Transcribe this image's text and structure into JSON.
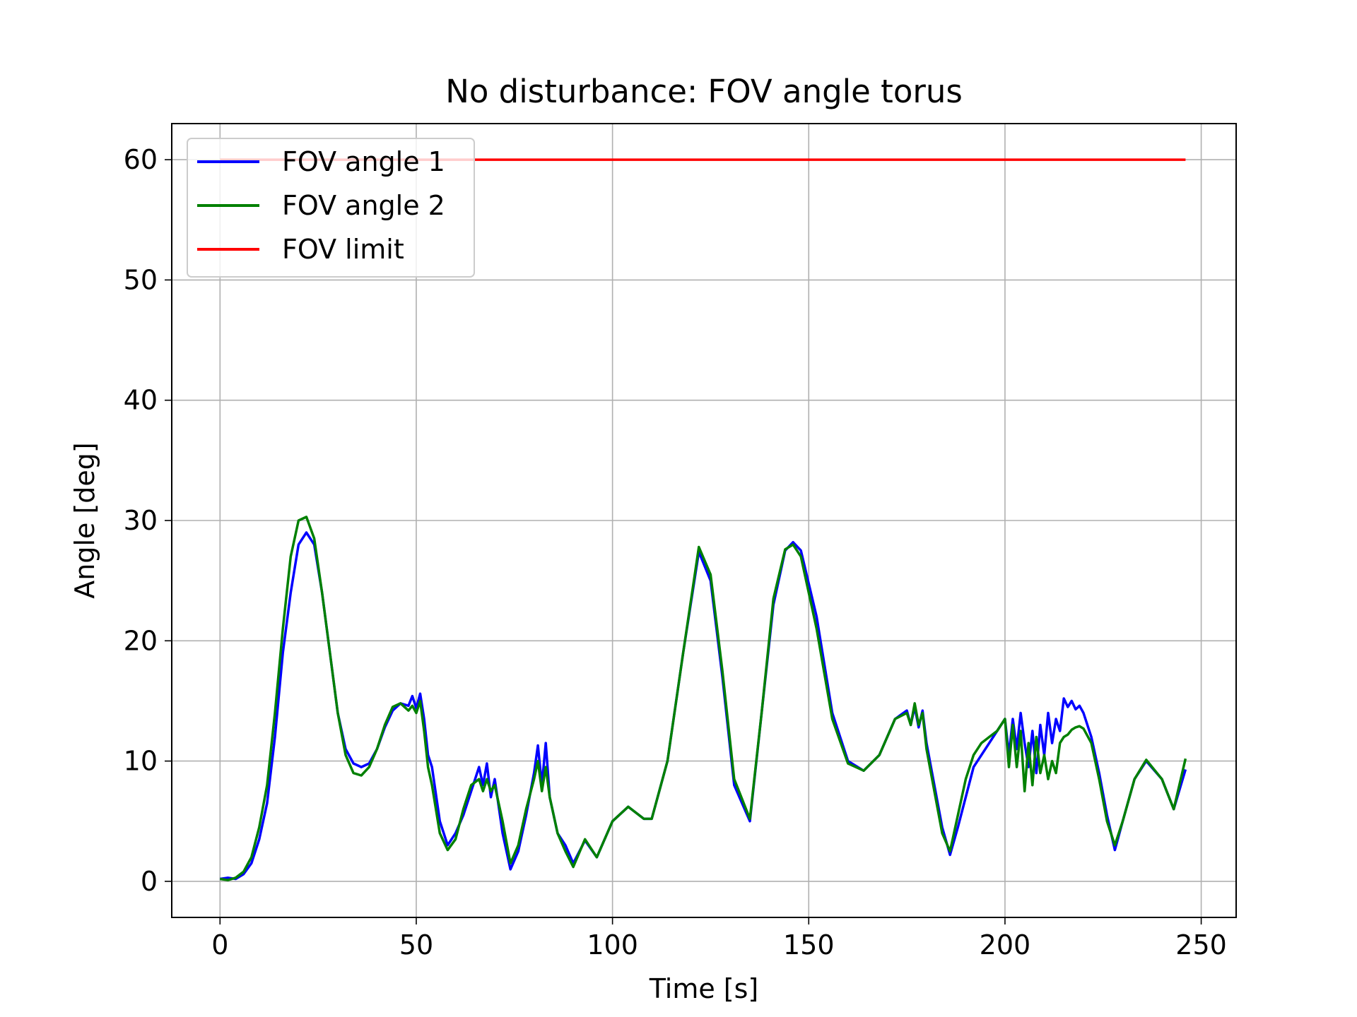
{
  "chart_data": {
    "type": "line",
    "title": "No disturbance: FOV angle torus",
    "xlabel": "Time [s]",
    "ylabel": "Angle [deg]",
    "xlim": [
      -12.3,
      258.9
    ],
    "ylim": [
      -3,
      63
    ],
    "xticks": [
      0,
      50,
      100,
      150,
      200,
      250
    ],
    "yticks": [
      0,
      10,
      20,
      30,
      40,
      50,
      60
    ],
    "xtick_labels": [
      "0",
      "50",
      "100",
      "150",
      "200",
      "250"
    ],
    "ytick_labels": [
      "0",
      "10",
      "20",
      "30",
      "40",
      "50",
      "60"
    ],
    "grid": true,
    "legend_position": "upper-left",
    "series": [
      {
        "name": "FOV angle 1",
        "color": "#0000ff",
        "x": [
          0,
          2,
          4,
          6,
          8,
          10,
          12,
          14,
          16,
          18,
          20,
          22,
          24,
          26,
          28,
          30,
          32,
          34,
          36,
          38,
          40,
          42,
          44,
          46,
          48,
          49,
          50,
          51,
          52,
          53,
          54,
          56,
          58,
          60,
          62,
          64,
          66,
          67,
          68,
          69,
          70,
          72,
          74,
          76,
          78,
          80,
          81,
          82,
          83,
          84,
          86,
          88,
          90,
          93,
          96,
          100,
          104,
          108,
          110,
          114,
          118,
          122,
          125,
          128,
          131,
          135,
          138,
          141,
          144,
          146,
          148,
          152,
          156,
          160,
          164,
          168,
          172,
          175,
          176,
          177,
          178,
          179,
          180,
          182,
          184,
          186,
          188,
          190,
          192,
          194,
          196,
          198,
          200,
          201,
          202,
          203,
          204,
          205,
          206,
          207,
          208,
          209,
          210,
          211,
          212,
          213,
          214,
          215,
          216,
          217,
          218,
          219,
          220,
          222,
          224,
          226,
          228,
          230,
          233,
          236,
          240,
          243,
          246
        ],
        "y": [
          0.2,
          0.3,
          0.2,
          0.6,
          1.5,
          3.5,
          6.5,
          12,
          19,
          24,
          28,
          29,
          28,
          24,
          19,
          14,
          11,
          9.8,
          9.5,
          9.8,
          11,
          12.8,
          14.2,
          14.8,
          14.6,
          15.4,
          14.4,
          15.6,
          13.5,
          10.5,
          9.5,
          5,
          3,
          4,
          5.5,
          7.5,
          9.5,
          8,
          9.8,
          7,
          8.5,
          4,
          1,
          2.5,
          5.5,
          9,
          11.3,
          8,
          11.5,
          7,
          4,
          3,
          1.5,
          3.4,
          2,
          5,
          6.2,
          5.2,
          5.2,
          10,
          19,
          27.4,
          25,
          17,
          8,
          5,
          14,
          23,
          27.5,
          28.2,
          27.5,
          22,
          14,
          10,
          9.2,
          10.5,
          13.5,
          14.2,
          13,
          14.5,
          12.8,
          14.2,
          11.5,
          8,
          4.5,
          2.2,
          4.5,
          7,
          9.5,
          10.5,
          11.5,
          12.5,
          13.5,
          10.5,
          13.5,
          11,
          14,
          11.5,
          9.5,
          12.5,
          9,
          13,
          10.5,
          14,
          11.5,
          13.5,
          12.5,
          15.2,
          14.5,
          15,
          14.3,
          14.6,
          14,
          12,
          9,
          5.5,
          2.6,
          5,
          8.5,
          10,
          8.5,
          6,
          9.3
        ]
      },
      {
        "name": "FOV angle 2",
        "color": "#008000",
        "x": [
          0,
          2,
          4,
          6,
          8,
          10,
          12,
          14,
          16,
          18,
          20,
          22,
          24,
          26,
          28,
          30,
          32,
          34,
          36,
          38,
          40,
          42,
          44,
          46,
          48,
          49,
          50,
          51,
          52,
          53,
          54,
          56,
          58,
          60,
          62,
          64,
          66,
          67,
          68,
          69,
          70,
          72,
          74,
          76,
          78,
          80,
          81,
          82,
          83,
          84,
          86,
          88,
          90,
          93,
          96,
          100,
          104,
          108,
          110,
          114,
          118,
          122,
          125,
          128,
          131,
          135,
          138,
          141,
          144,
          146,
          148,
          152,
          156,
          160,
          164,
          168,
          172,
          175,
          176,
          177,
          178,
          179,
          180,
          182,
          184,
          186,
          188,
          190,
          192,
          194,
          196,
          198,
          200,
          201,
          202,
          203,
          204,
          205,
          206,
          207,
          208,
          209,
          210,
          211,
          212,
          213,
          214,
          215,
          216,
          217,
          218,
          219,
          220,
          222,
          224,
          226,
          228,
          230,
          233,
          236,
          240,
          243,
          246
        ],
        "y": [
          0.2,
          0.1,
          0.3,
          0.8,
          2,
          4.5,
          8,
          14,
          21,
          27,
          30,
          30.3,
          28.5,
          24,
          19,
          14,
          10.5,
          9,
          8.8,
          9.5,
          11,
          13,
          14.5,
          14.8,
          14.2,
          14.6,
          14,
          15,
          12.5,
          9.5,
          8,
          4,
          2.6,
          3.5,
          6,
          8,
          8.5,
          7.5,
          8.5,
          7.5,
          8,
          5,
          1.5,
          3,
          6,
          8.5,
          10,
          7.5,
          9.5,
          7,
          4,
          2.5,
          1.2,
          3.5,
          2,
          5,
          6.2,
          5.2,
          5.2,
          10,
          19,
          27.8,
          25.5,
          17.5,
          8.5,
          5.2,
          14,
          23.5,
          27.6,
          28,
          27,
          21,
          13.5,
          9.8,
          9.2,
          10.5,
          13.5,
          14,
          13,
          14.8,
          13,
          14,
          11,
          7.5,
          4,
          2.5,
          5.5,
          8.5,
          10.5,
          11.5,
          12,
          12.5,
          13.5,
          9.5,
          13,
          9.5,
          12.5,
          7.5,
          11.5,
          8,
          12,
          9,
          10.5,
          8.5,
          10,
          9,
          11.5,
          12,
          12.2,
          12.6,
          12.8,
          12.9,
          12.7,
          11.5,
          8.5,
          5,
          3,
          5,
          8.5,
          10.1,
          8.5,
          6,
          10.2
        ]
      },
      {
        "name": "FOV limit",
        "color": "#ff0000",
        "x": [
          0,
          246
        ],
        "y": [
          60,
          60
        ]
      }
    ]
  }
}
